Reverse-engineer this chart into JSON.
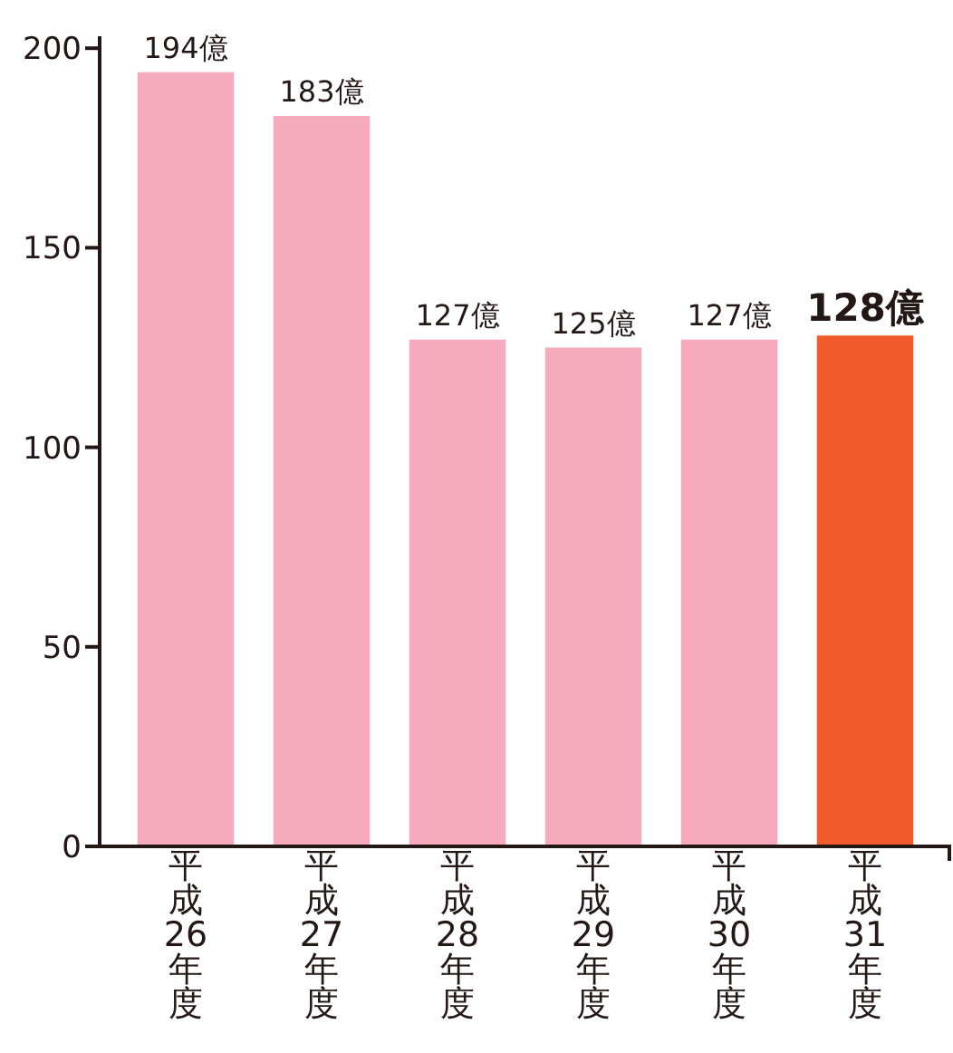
{
  "chart_data": {
    "type": "bar",
    "categories": [
      "平成26年度",
      "平成27年度",
      "平成28年度",
      "平成29年度",
      "平成30年度",
      "平成31年度"
    ],
    "values": [
      194,
      183,
      127,
      125,
      127,
      128
    ],
    "colors": [
      "#f5aabd",
      "#f5aabd",
      "#f5aabd",
      "#f5aabd",
      "#f5aabd",
      "#f15a2b"
    ],
    "value_labels": [
      "194億",
      "183億",
      "127億",
      "125億",
      "127億",
      "128億"
    ],
    "ylim": [
      0,
      203
    ],
    "yticks": [
      0,
      50,
      100,
      150,
      200
    ]
  }
}
